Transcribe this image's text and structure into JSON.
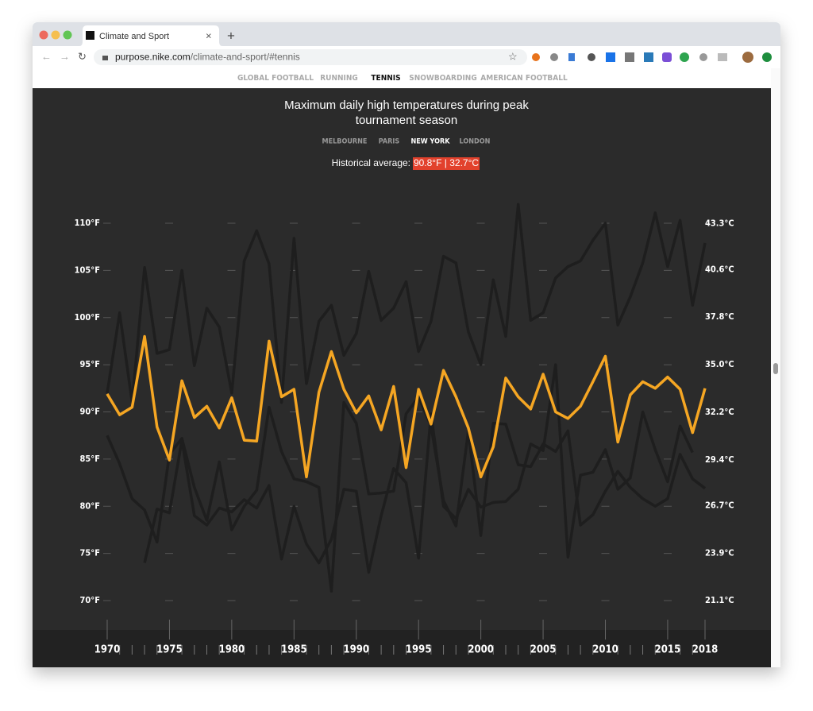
{
  "browser": {
    "tab_title": "Climate and Sport",
    "url_host": "purpose.nike.com",
    "url_path": "/climate-and-sport/#tennis"
  },
  "nav": [
    "GLOBAL FOOTBALL",
    "RUNNING",
    "TENNIS",
    "SNOWBOARDING",
    "AMERICAN FOOTBALL"
  ],
  "average": {
    "label": "Historical average:",
    "value": "90.8°F | 32.7°C"
  },
  "chart_data": {
    "type": "line",
    "title": "Maximum daily high temperatures during peak tournament season",
    "x": [
      1970,
      1971,
      1972,
      1973,
      1974,
      1975,
      1976,
      1977,
      1978,
      1979,
      1980,
      1981,
      1982,
      1983,
      1984,
      1985,
      1986,
      1987,
      1988,
      1989,
      1990,
      1991,
      1992,
      1993,
      1994,
      1995,
      1996,
      1997,
      1998,
      1999,
      2000,
      2001,
      2002,
      2003,
      2004,
      2005,
      2006,
      2007,
      2008,
      2009,
      2010,
      2011,
      2012,
      2013,
      2014,
      2015,
      2016,
      2017,
      2018
    ],
    "xlim": [
      1970,
      2018
    ],
    "xticks": [
      1970,
      1975,
      1980,
      1985,
      1990,
      1995,
      2000,
      2005,
      2010,
      2015,
      2018
    ],
    "ylim": [
      70,
      110
    ],
    "yticks": [
      {
        "value": 70,
        "label": "70°F"
      },
      {
        "value": 75,
        "label": "75°F"
      },
      {
        "value": 80,
        "label": "80°F"
      },
      {
        "value": 85,
        "label": "85°F"
      },
      {
        "value": 90,
        "label": "90°F"
      },
      {
        "value": 95,
        "label": "95°F"
      },
      {
        "value": 100,
        "label": "100°F"
      },
      {
        "value": 105,
        "label": "105°F"
      },
      {
        "value": 110,
        "label": "110°F"
      }
    ],
    "y2lim": [
      21.11,
      43.33
    ],
    "y2ticks": [
      {
        "value": 21.1,
        "label": "21.1°C"
      },
      {
        "value": 23.9,
        "label": "23.9°C"
      },
      {
        "value": 26.7,
        "label": "26.7°C"
      },
      {
        "value": 29.4,
        "label": "29.4°C"
      },
      {
        "value": 32.2,
        "label": "32.2°C"
      },
      {
        "value": 35.0,
        "label": "35.0°C"
      },
      {
        "value": 37.8,
        "label": "37.8°C"
      },
      {
        "value": 40.6,
        "label": "40.6°C"
      },
      {
        "value": 43.3,
        "label": "43.3°C"
      }
    ],
    "grid": true,
    "selected": 2,
    "series": [
      {
        "name": "MELBOURNE",
        "color": "#1e1e1e",
        "values": [
          92,
          100.5,
          91,
          105.3,
          96.2,
          96.6,
          105,
          94.9,
          101,
          99,
          92,
          106,
          109.2,
          105.7,
          91,
          108.4,
          93,
          99.6,
          101.3,
          96,
          98.3,
          104.9,
          99.7,
          101,
          103.8,
          96.4,
          99.6,
          106.5,
          105.8,
          98.5,
          95,
          104,
          98,
          112,
          99.7,
          100.5,
          104.2,
          105.4,
          106,
          108.2,
          110,
          99.2,
          102.2,
          105.8,
          111.1,
          105.4,
          110.3,
          101.3,
          107.9
        ]
      },
      {
        "name": "PARIS",
        "color": "#1e1e1e",
        "values": [
          87.5,
          84.5,
          80.8,
          79.6,
          76.2,
          85.5,
          87.2,
          82,
          78.5,
          84.7,
          77.5,
          80,
          81.7,
          90.5,
          85.8,
          82.9,
          82.6,
          82,
          71,
          91,
          88.8,
          81.3,
          81.4,
          81.6,
          89.8,
          91.6,
          88.5,
          80.6,
          77.9,
          88,
          76.9,
          88.8,
          88.7,
          84.4,
          84.2,
          86.6,
          85.8,
          88,
          78,
          79.1,
          81.6,
          83.7,
          82,
          80.8,
          80,
          80.8,
          85.5,
          82.9,
          81.9
        ]
      },
      {
        "name": "NEW YORK",
        "color": "#f5a623",
        "values": [
          91.9,
          89.7,
          90.5,
          98.0,
          88.4,
          84.9,
          93.3,
          89.4,
          90.6,
          88.3,
          91.5,
          87.0,
          86.9,
          97.5,
          91.6,
          92.4,
          83.1,
          92.1,
          96.4,
          92.4,
          89.9,
          91.7,
          88.1,
          92.7,
          84.1,
          92.4,
          88.7,
          94.4,
          91.6,
          88.3,
          83.1,
          86.3,
          93.6,
          91.6,
          90.3,
          94.0,
          90.0,
          89.3,
          90.6,
          93.2,
          95.9,
          86.8,
          91.8,
          93.2,
          92.5,
          93.7,
          92.4,
          87.8,
          92.5
        ]
      },
      {
        "name": "LONDON",
        "color": "#1e1e1e",
        "values": [
          null,
          null,
          null,
          74,
          79.7,
          79.3,
          87,
          79,
          78,
          79.8,
          79.4,
          80.7,
          79.8,
          82.2,
          74.4,
          80,
          76,
          74,
          76.5,
          81.8,
          81.6,
          73,
          79,
          84,
          82.5,
          74.5,
          89.8,
          80,
          78.7,
          81.8,
          79.9,
          80.4,
          80.5,
          81.8,
          86.6,
          85.9,
          95,
          74.6,
          83.3,
          83.6,
          86,
          81.8,
          83,
          90,
          86,
          82.6,
          88.5,
          85.7,
          null
        ]
      }
    ]
  }
}
